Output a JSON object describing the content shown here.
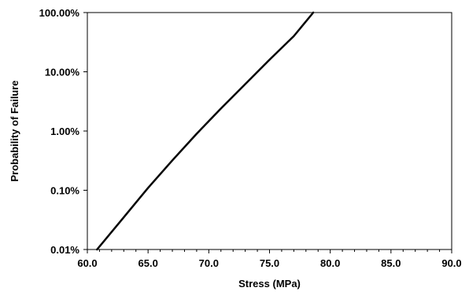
{
  "chart_data": {
    "type": "line",
    "title": "",
    "xlabel": "Stress (MPa)",
    "ylabel": "Probability of Failure",
    "xlim": [
      60.0,
      90.0
    ],
    "ylim": [
      0.0001,
      1.0
    ],
    "y_scale": "log",
    "grid": false,
    "legend": "none",
    "x_ticks": [
      "60.0",
      "65.0",
      "70.0",
      "75.0",
      "80.0",
      "85.0",
      "90.0"
    ],
    "y_ticks": [
      "0.01%",
      "0.10%",
      "1.00%",
      "10.00%",
      "100.00%"
    ],
    "series": [
      {
        "color": "#000000",
        "x": [
          60.8,
          63.0,
          65.0,
          67.0,
          69.0,
          71.0,
          73.0,
          75.0,
          77.0,
          78.6
        ],
        "y": [
          0.0001,
          0.00035,
          0.0011,
          0.0032,
          0.009,
          0.024,
          0.062,
          0.16,
          0.4,
          1.0
        ]
      }
    ]
  }
}
